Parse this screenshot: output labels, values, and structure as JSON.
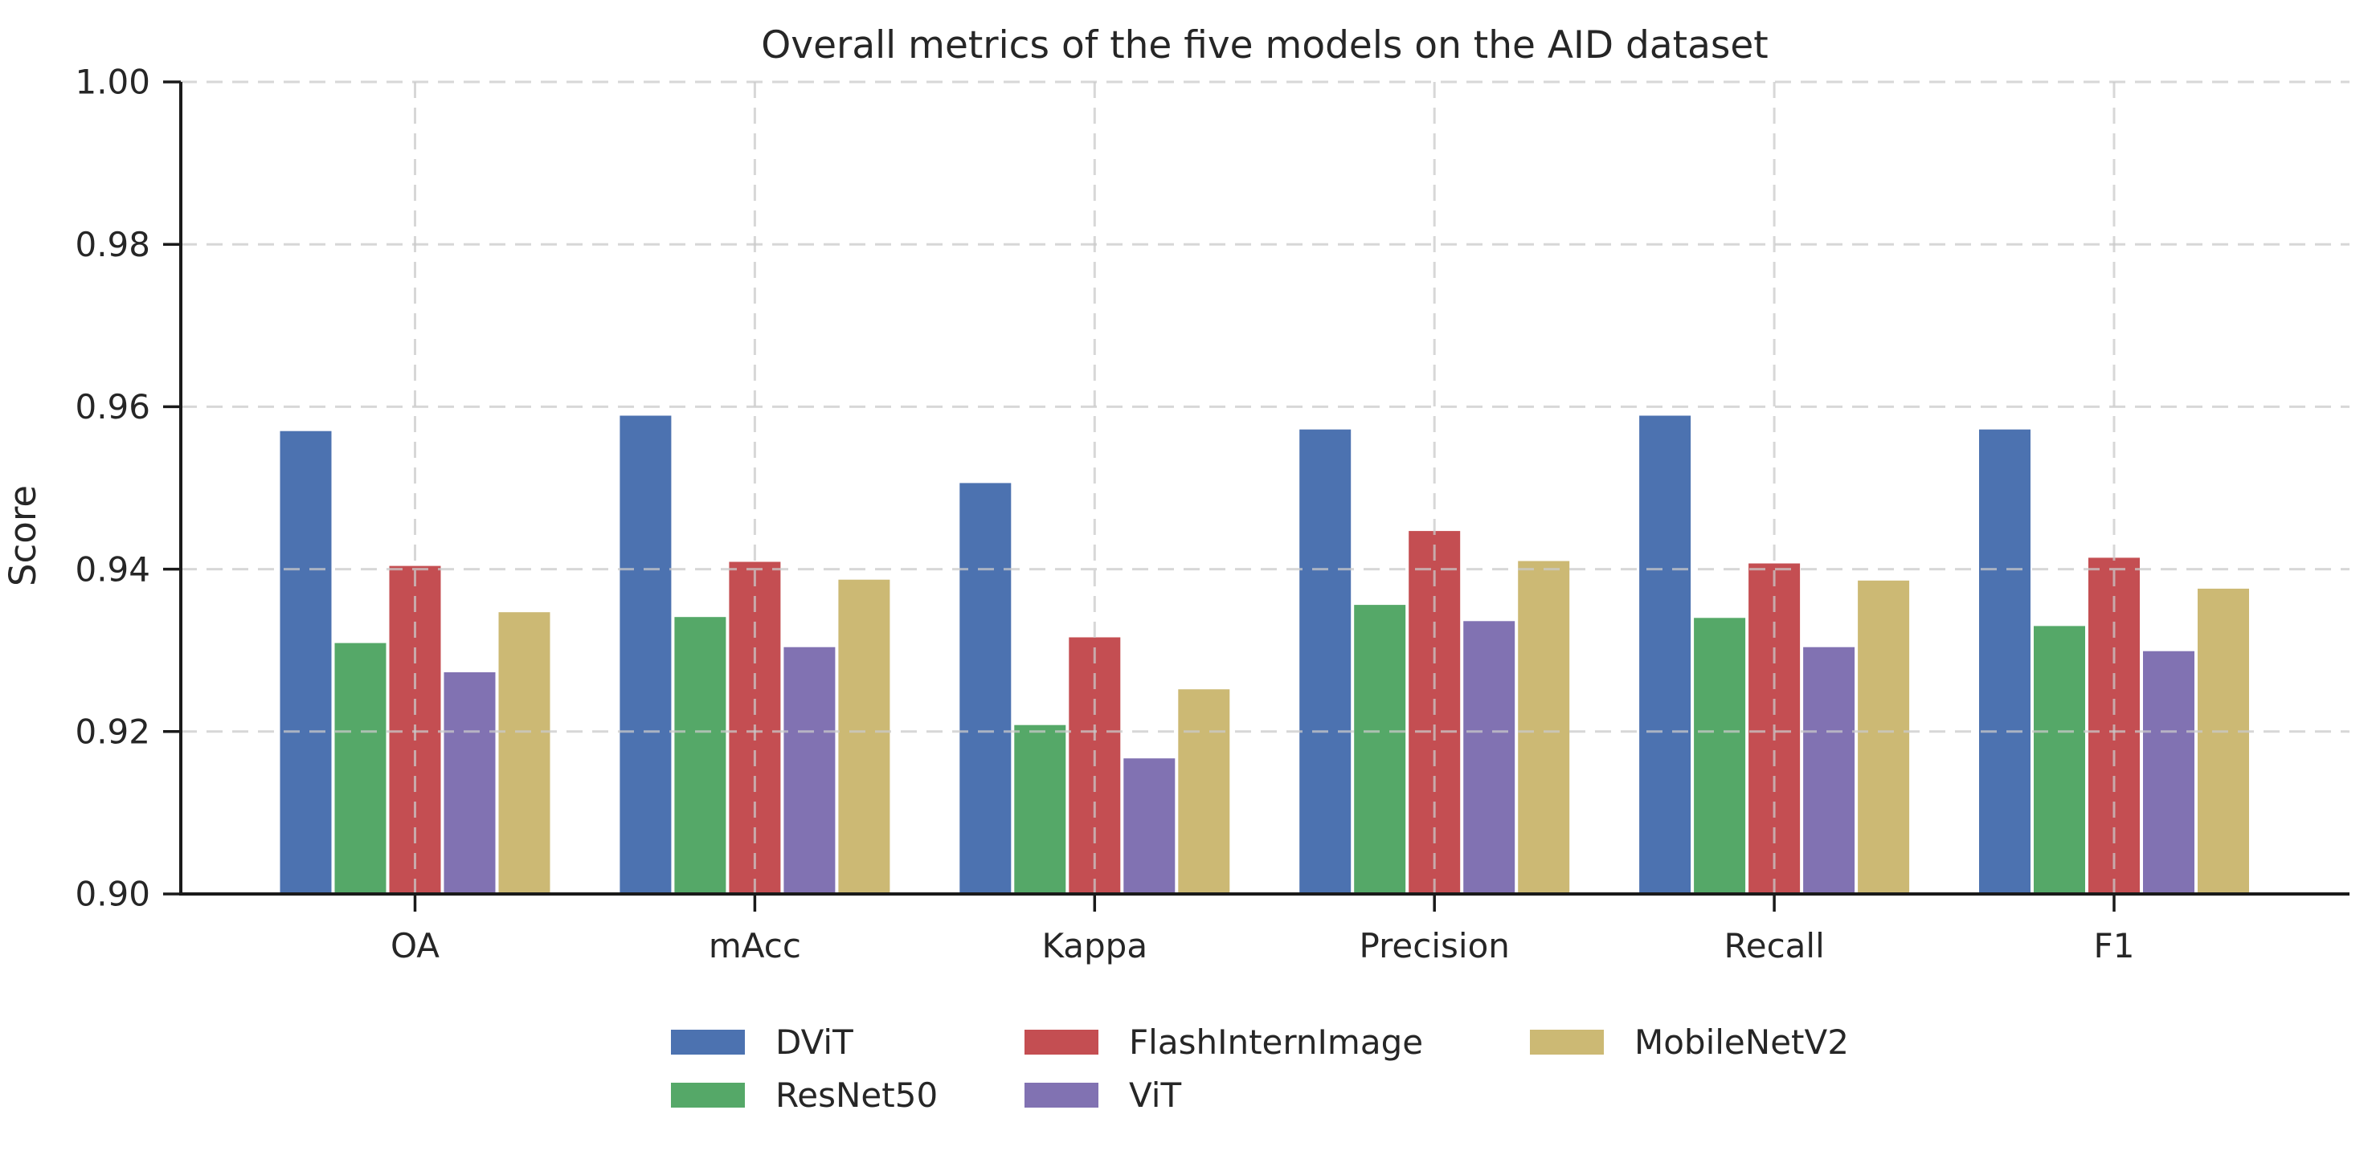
{
  "chart_data": {
    "type": "bar",
    "title": "Overall metrics of the five models on the AID dataset",
    "xlabel": "",
    "ylabel": "Score",
    "categories": [
      "OA",
      "mAcc",
      "Kappa",
      "Precision",
      "Recall",
      "F1"
    ],
    "series": [
      {
        "name": "DViT",
        "color": "#4C72B0",
        "values": [
          0.957,
          0.9589,
          0.9506,
          0.9572,
          0.9589,
          0.9572
        ]
      },
      {
        "name": "ResNet50",
        "color": "#55A868",
        "values": [
          0.9309,
          0.9341,
          0.9208,
          0.9356,
          0.934,
          0.933
        ]
      },
      {
        "name": "FlashInternImage",
        "color": "#C44E52",
        "values": [
          0.9404,
          0.9409,
          0.9316,
          0.9447,
          0.9407,
          0.9414
        ]
      },
      {
        "name": "ViT",
        "color": "#8172B2",
        "values": [
          0.9273,
          0.9304,
          0.9167,
          0.9336,
          0.9304,
          0.9299
        ]
      },
      {
        "name": "MobileNetV2",
        "color": "#CCB974",
        "values": [
          0.9347,
          0.9387,
          0.9252,
          0.941,
          0.9386,
          0.9376
        ]
      }
    ],
    "ylim": [
      0.9,
      1.0
    ],
    "yticks": [
      0.9,
      0.92,
      0.94,
      0.96,
      0.98,
      1.0
    ],
    "ytick_labels": [
      "0.90",
      "0.92",
      "0.94",
      "0.96",
      "0.98",
      "1.00"
    ],
    "grid": "dashed light-gray gridlines on both axes, drawn over bars",
    "legend_position": "below plot, 3 columns, 2 rows",
    "text_color": "#262626",
    "spine_color": "#1a1a1a",
    "grid_color": "#c9c9c9",
    "background_color": "#ffffff"
  }
}
